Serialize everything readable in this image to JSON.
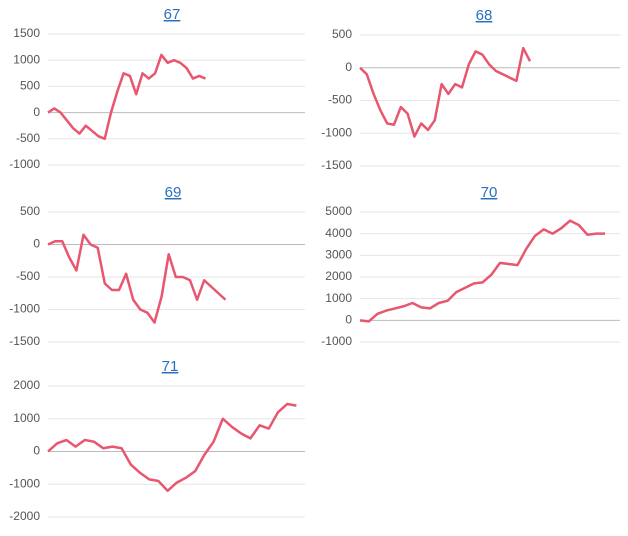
{
  "chart_data": [
    {
      "type": "line",
      "title": "67",
      "color": "#e8566f",
      "grid": true,
      "ylim": [
        -1000,
        1500
      ],
      "yticks": [
        -1000,
        -500,
        0,
        500,
        1000,
        1500
      ],
      "values": [
        0,
        80,
        0,
        -150,
        -300,
        -400,
        -250,
        -350,
        -450,
        -500,
        0,
        400,
        750,
        700,
        350,
        750,
        650,
        750,
        1100,
        950,
        1000,
        950,
        850,
        650,
        700,
        650
      ]
    },
    {
      "type": "line",
      "title": "68",
      "color": "#e8566f",
      "grid": true,
      "ylim": [
        -1500,
        500
      ],
      "yticks": [
        -1500,
        -1000,
        -500,
        0,
        500
      ],
      "values": [
        0,
        -100,
        -400,
        -650,
        -850,
        -870,
        -600,
        -700,
        -1050,
        -850,
        -950,
        -800,
        -250,
        -400,
        -250,
        -300,
        50,
        250,
        200,
        50,
        -50,
        -100,
        -150,
        -200,
        300,
        100
      ]
    },
    {
      "type": "line",
      "title": "69",
      "color": "#e8566f",
      "grid": true,
      "ylim": [
        -1500,
        500
      ],
      "yticks": [
        -1500,
        -1000,
        -500,
        0,
        500
      ],
      "values": [
        0,
        50,
        50,
        -200,
        -400,
        150,
        0,
        -50,
        -600,
        -700,
        -700,
        -450,
        -850,
        -1000,
        -1050,
        -1200,
        -800,
        -150,
        -500,
        -500,
        -550,
        -850,
        -550,
        -650,
        -750,
        -850
      ]
    },
    {
      "type": "line",
      "title": "70",
      "color": "#e8566f",
      "grid": true,
      "ylim": [
        -1000,
        5000
      ],
      "yticks": [
        -1000,
        0,
        1000,
        2000,
        3000,
        4000,
        5000
      ],
      "values": [
        0,
        -50,
        300,
        450,
        550,
        650,
        800,
        600,
        550,
        800,
        900,
        1300,
        1500,
        1700,
        1750,
        2100,
        2650,
        2600,
        2550,
        3300,
        3900,
        4200,
        4000,
        4250,
        4600,
        4400,
        3950,
        4000,
        4000
      ]
    },
    {
      "type": "line",
      "title": "71",
      "color": "#e8566f",
      "grid": true,
      "ylim": [
        -2000,
        2000
      ],
      "yticks": [
        -2000,
        -1000,
        0,
        1000,
        2000
      ],
      "values": [
        0,
        250,
        350,
        150,
        350,
        300,
        100,
        150,
        100,
        -400,
        -650,
        -850,
        -900,
        -1200,
        -950,
        -800,
        -600,
        -100,
        300,
        1000,
        750,
        550,
        400,
        800,
        700,
        1200,
        1450,
        1400
      ]
    }
  ]
}
